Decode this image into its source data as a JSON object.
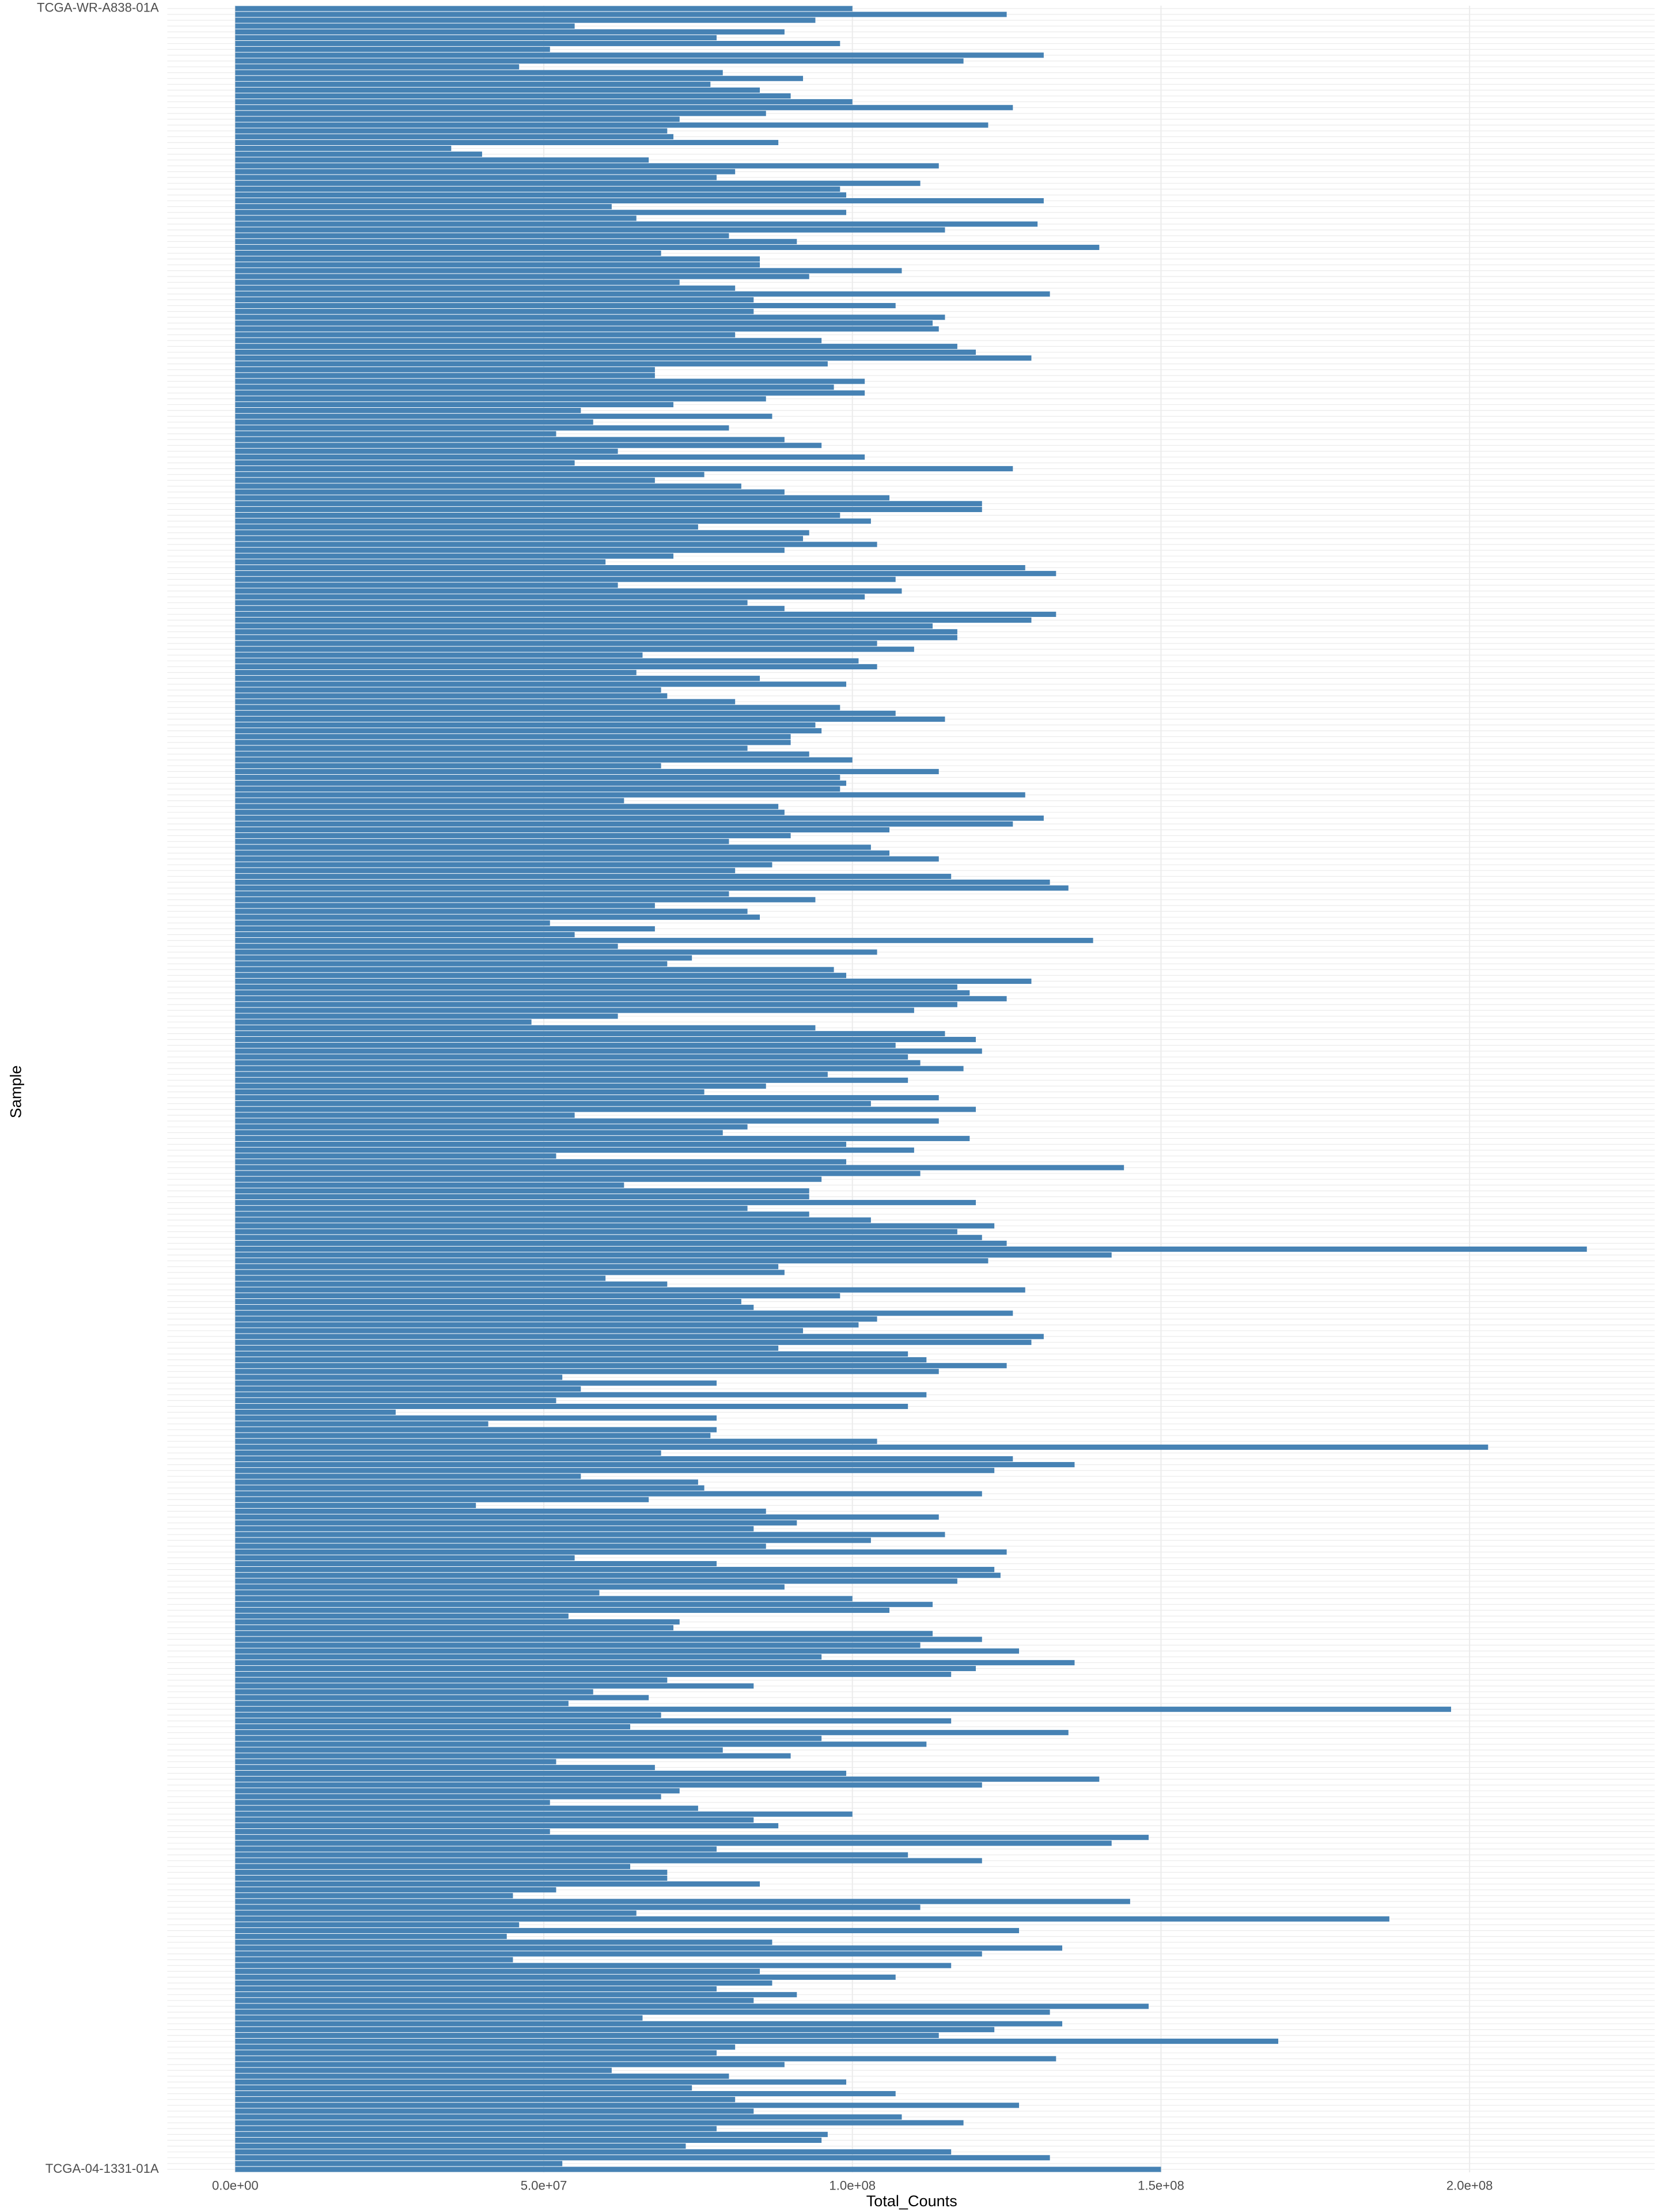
{
  "chart_data": {
    "type": "barh",
    "x_label": "Total_Counts",
    "y_label": "Sample",
    "color": "#4682b4",
    "grid": true,
    "xlim": [
      -11000000.0,
      230000000.0
    ],
    "xticks": [
      {
        "value": 0,
        "label": "0.0e+00"
      },
      {
        "value": 50000000.0,
        "label": "5.0e+07"
      },
      {
        "value": 100000000.0,
        "label": "1.0e+08"
      },
      {
        "value": 150000000.0,
        "label": "1.5e+08"
      },
      {
        "value": 200000000.0,
        "label": "2.0e+08"
      }
    ],
    "categories": [
      "TCGA-WR-A838-01A",
      null,
      null,
      null,
      null,
      null,
      null,
      null,
      null,
      null,
      null,
      null,
      null,
      null,
      null,
      null,
      null,
      null,
      null,
      null,
      null,
      null,
      null,
      null,
      null,
      null,
      null,
      null,
      null,
      null,
      null,
      null,
      null,
      null,
      null,
      null,
      null,
      null,
      null,
      null,
      null,
      null,
      null,
      null,
      null,
      null,
      null,
      null,
      null,
      null,
      null,
      null,
      null,
      null,
      null,
      null,
      null,
      null,
      null,
      null,
      null,
      null,
      null,
      null,
      null,
      null,
      null,
      null,
      null,
      null,
      null,
      null,
      null,
      null,
      null,
      null,
      null,
      null,
      null,
      null,
      null,
      null,
      null,
      null,
      null,
      null,
      null,
      null,
      null,
      null,
      null,
      null,
      null,
      null,
      null,
      null,
      null,
      null,
      null,
      null,
      null,
      null,
      null,
      null,
      null,
      null,
      null,
      null,
      null,
      null,
      null,
      null,
      null,
      null,
      null,
      null,
      null,
      null,
      null,
      null,
      null,
      null,
      null,
      null,
      null,
      null,
      null,
      null,
      null,
      null,
      null,
      null,
      null,
      null,
      null,
      null,
      null,
      null,
      null,
      null,
      null,
      null,
      null,
      null,
      null,
      null,
      null,
      null,
      null,
      null,
      null,
      null,
      null,
      null,
      null,
      null,
      null,
      null,
      null,
      null,
      null,
      null,
      null,
      null,
      null,
      null,
      null,
      null,
      null,
      null,
      null,
      null,
      null,
      null,
      null,
      null,
      null,
      null,
      null,
      null,
      null,
      null,
      null,
      null,
      null,
      null,
      null,
      null,
      null,
      null,
      null,
      null,
      null,
      null,
      null,
      null,
      null,
      null,
      null,
      null,
      null,
      null,
      null,
      null,
      null,
      null,
      null,
      null,
      null,
      null,
      null,
      null,
      null,
      null,
      null,
      null,
      null,
      null,
      null,
      null,
      null,
      null,
      null,
      null,
      null,
      null,
      null,
      null,
      null,
      null,
      null,
      null,
      null,
      null,
      null,
      null,
      null,
      null,
      null,
      null,
      null,
      null,
      null,
      null,
      null,
      null,
      null,
      null,
      null,
      null,
      null,
      null,
      null,
      null,
      null,
      null,
      null,
      null,
      null,
      null,
      null,
      null,
      null,
      null,
      null,
      null,
      null,
      null,
      null,
      null,
      null,
      null,
      null,
      null,
      null,
      null,
      null,
      null,
      null,
      null,
      null,
      null,
      null,
      null,
      null,
      null,
      null,
      null,
      null,
      null,
      null,
      null,
      null,
      null,
      null,
      null,
      null,
      null,
      null,
      null,
      null,
      null,
      null,
      null,
      null,
      null,
      null,
      null,
      null,
      null,
      null,
      null,
      null,
      null,
      null,
      null,
      null,
      null,
      null,
      null,
      null,
      null,
      null,
      null,
      null,
      null,
      null,
      null,
      null,
      null,
      null,
      null,
      null,
      null,
      null,
      null,
      null,
      null,
      null,
      null,
      null,
      null,
      null,
      null,
      null,
      null,
      null,
      null,
      null,
      null,
      null,
      null,
      null,
      null,
      null,
      null,
      null,
      null,
      null,
      null,
      null,
      null,
      null,
      null,
      null,
      null,
      null,
      null,
      null,
      null,
      null,
      "TCGA-04-1331-01A"
    ],
    "values": [
      100000000.0,
      125000000.0,
      94000000.0,
      55000000.0,
      89000000.0,
      78000000.0,
      98000000.0,
      51000000.0,
      131000000.0,
      118000000.0,
      46000000.0,
      79000000.0,
      92000000.0,
      77000000.0,
      85000000.0,
      90000000.0,
      100000000.0,
      126000000.0,
      86000000.0,
      72000000.0,
      122000000.0,
      70000000.0,
      71000000.0,
      88000000.0,
      35000000.0,
      40000000.0,
      67000000.0,
      114000000.0,
      81000000.0,
      78000000.0,
      111000000.0,
      98000000.0,
      99000000.0,
      131000000.0,
      61000000.0,
      99000000.0,
      65000000.0,
      130000000.0,
      115000000.0,
      80000000.0,
      91000000.0,
      140000000.0,
      69000000.0,
      85000000.0,
      85000000.0,
      108000000.0,
      93000000.0,
      72000000.0,
      81000000.0,
      132000000.0,
      84000000.0,
      107000000.0,
      84000000.0,
      115000000.0,
      113000000.0,
      114000000.0,
      81000000.0,
      95000000.0,
      117000000.0,
      120000000.0,
      129000000.0,
      96000000.0,
      68000000.0,
      68000000.0,
      102000000.0,
      97000000.0,
      102000000.0,
      86000000.0,
      71000000.0,
      56000000.0,
      87000000.0,
      58000000.0,
      80000000.0,
      52000000.0,
      89000000.0,
      95000000.0,
      62000000.0,
      102000000.0,
      55000000.0,
      126000000.0,
      76000000.0,
      68000000.0,
      82000000.0,
      89000000.0,
      106000000.0,
      121000000.0,
      121000000.0,
      98000000.0,
      103000000.0,
      75000000.0,
      93000000.0,
      92000000.0,
      104000000.0,
      89000000.0,
      71000000.0,
      60000000.0,
      128000000.0,
      133000000.0,
      107000000.0,
      62000000.0,
      108000000.0,
      102000000.0,
      83000000.0,
      89000000.0,
      133000000.0,
      129000000.0,
      113000000.0,
      117000000.0,
      117000000.0,
      104000000.0,
      110000000.0,
      66000000.0,
      101000000.0,
      104000000.0,
      65000000.0,
      85000000.0,
      99000000.0,
      69000000.0,
      70000000.0,
      81000000.0,
      98000000.0,
      107000000.0,
      115000000.0,
      94000000.0,
      95000000.0,
      90000000.0,
      90000000.0,
      83000000.0,
      93000000.0,
      100000000.0,
      69000000.0,
      114000000.0,
      98000000.0,
      99000000.0,
      98000000.0,
      128000000.0,
      63000000.0,
      88000000.0,
      89000000.0,
      131000000.0,
      126000000.0,
      106000000.0,
      90000000.0,
      80000000.0,
      103000000.0,
      106000000.0,
      114000000.0,
      87000000.0,
      81000000.0,
      116000000.0,
      132000000.0,
      135000000.0,
      80000000.0,
      94000000.0,
      68000000.0,
      83000000.0,
      85000000.0,
      51000000.0,
      68000000.0,
      55000000.0,
      139000000.0,
      62000000.0,
      104000000.0,
      74000000.0,
      70000000.0,
      97000000.0,
      99000000.0,
      129000000.0,
      117000000.0,
      119000000.0,
      125000000.0,
      117000000.0,
      110000000.0,
      62000000.0,
      48000000.0,
      94000000.0,
      115000000.0,
      120000000.0,
      107000000.0,
      121000000.0,
      109000000.0,
      111000000.0,
      118000000.0,
      96000000.0,
      109000000.0,
      86000000.0,
      76000000.0,
      114000000.0,
      103000000.0,
      120000000.0,
      55000000.0,
      114000000.0,
      83000000.0,
      79000000.0,
      119000000.0,
      99000000.0,
      110000000.0,
      52000000.0,
      99000000.0,
      144000000.0,
      111000000.0,
      95000000.0,
      63000000.0,
      93000000.0,
      93000000.0,
      120000000.0,
      83000000.0,
      93000000.0,
      103000000.0,
      123000000.0,
      117000000.0,
      121000000.0,
      125000000.0,
      219000000.0,
      142000000.0,
      122000000.0,
      88000000.0,
      89000000.0,
      60000000.0,
      70000000.0,
      128000000.0,
      98000000.0,
      82000000.0,
      84000000.0,
      126000000.0,
      104000000.0,
      101000000.0,
      92000000.0,
      131000000.0,
      129000000.0,
      88000000.0,
      109000000.0,
      112000000.0,
      125000000.0,
      114000000.0,
      53000000.0,
      78000000.0,
      56000000.0,
      112000000.0,
      52000000.0,
      109000000.0,
      26000000.0,
      78000000.0,
      41000000.0,
      78000000.0,
      77000000.0,
      104000000.0,
      203000000.0,
      69000000.0,
      126000000.0,
      136000000.0,
      123000000.0,
      56000000.0,
      75000000.0,
      76000000.0,
      121000000.0,
      67000000.0,
      39000000.0,
      86000000.0,
      114000000.0,
      91000000.0,
      84000000.0,
      115000000.0,
      103000000.0,
      86000000.0,
      125000000.0,
      55000000.0,
      78000000.0,
      123000000.0,
      124000000.0,
      117000000.0,
      89000000.0,
      59000000.0,
      100000000.0,
      113000000.0,
      106000000.0,
      54000000.0,
      72000000.0,
      71000000.0,
      113000000.0,
      121000000.0,
      111000000.0,
      127000000.0,
      95000000.0,
      136000000.0,
      120000000.0,
      116000000.0,
      70000000.0,
      84000000.0,
      58000000.0,
      67000000.0,
      54000000.0,
      197000000.0,
      69000000.0,
      116000000.0,
      64000000.0,
      135000000.0,
      95000000.0,
      112000000.0,
      79000000.0,
      90000000.0,
      52000000.0,
      68000000.0,
      99000000.0,
      140000000.0,
      121000000.0,
      72000000.0,
      69000000.0,
      51000000.0,
      75000000.0,
      100000000.0,
      84000000.0,
      88000000.0,
      51000000.0,
      148000000.0,
      142000000.0,
      78000000.0,
      109000000.0,
      121000000.0,
      64000000.0,
      70000000.0,
      70000000.0,
      85000000.0,
      52000000.0,
      45000000.0,
      145000000.0,
      111000000.0,
      65000000.0,
      187000000.0,
      46000000.0,
      127000000.0,
      44000000.0,
      87000000.0,
      134000000.0,
      121000000.0,
      45000000.0,
      116000000.0,
      85000000.0,
      107000000.0,
      87000000.0,
      78000000.0,
      91000000.0,
      84000000.0,
      148000000.0,
      132000000.0,
      66000000.0,
      134000000.0,
      123000000.0,
      114000000.0,
      169000000.0,
      81000000.0,
      78000000.0,
      133000000.0,
      89000000.0,
      61000000.0,
      80000000.0,
      99000000.0,
      74000000.0,
      107000000.0,
      81000000.0,
      127000000.0,
      84000000.0,
      108000000.0,
      118000000.0,
      78000000.0,
      96000000.0,
      95000000.0,
      73000000.0,
      116000000.0,
      132000000.0,
      53000000.0,
      150000000.0
    ]
  }
}
